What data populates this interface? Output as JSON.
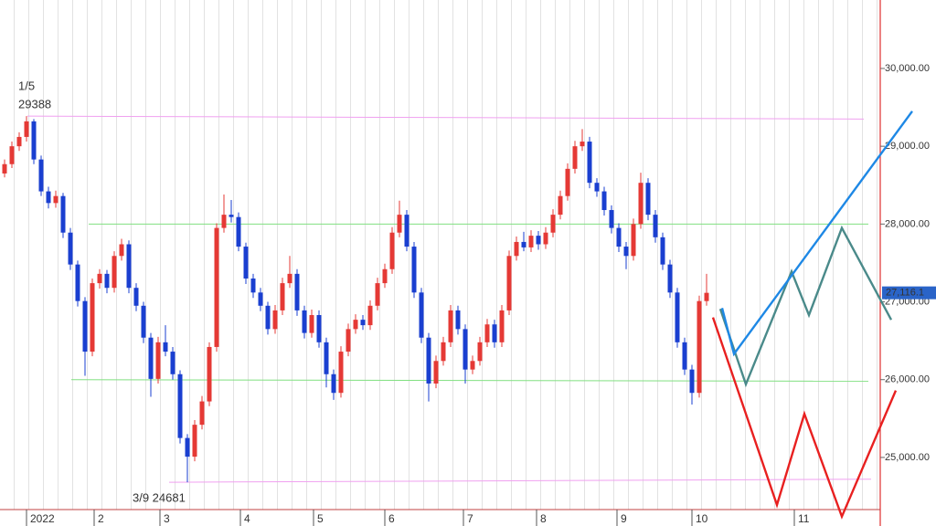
{
  "chart_data": {
    "type": "candlestick",
    "xlim": [
      -1.25,
      239.5
    ],
    "ylim": [
      24330,
      30880
    ],
    "yticks": [
      {
        "value": 25000,
        "label": "25,000.00"
      },
      {
        "value": 26000,
        "label": "26,000.00"
      },
      {
        "value": 27000,
        "label": "27,000.00"
      },
      {
        "value": 28000,
        "label": "28,000.00"
      },
      {
        "value": 29000,
        "label": "29,000.00"
      },
      {
        "value": 30000,
        "label": "30,000.00"
      }
    ],
    "xticks": [
      {
        "value": 6,
        "label": "2022"
      },
      {
        "value": 24.5,
        "label": "2"
      },
      {
        "value": 42.5,
        "label": "3"
      },
      {
        "value": 64.5,
        "label": "4"
      },
      {
        "value": 84.5,
        "label": "5"
      },
      {
        "value": 104,
        "label": "6"
      },
      {
        "value": 125.5,
        "label": "7"
      },
      {
        "value": 145.5,
        "label": "8"
      },
      {
        "value": 167.5,
        "label": "9"
      },
      {
        "value": 188,
        "label": "10"
      },
      {
        "value": 216,
        "label": "11"
      }
    ],
    "up_color": "#e53935",
    "down_color": "#1a3fd0",
    "x": [
      0,
      2,
      4,
      6,
      8,
      10,
      12,
      14,
      16,
      18,
      20,
      22,
      24,
      26,
      28,
      30,
      32,
      34,
      36,
      38,
      40,
      42,
      44,
      46,
      48,
      50,
      52,
      54,
      56,
      58,
      60,
      62,
      64,
      66,
      68,
      70,
      72,
      74,
      76,
      78,
      80,
      82,
      84,
      86,
      88,
      90,
      92,
      94,
      96,
      98,
      100,
      102,
      104,
      106,
      108,
      110,
      112,
      114,
      116,
      118,
      120,
      122,
      124,
      126,
      128,
      130,
      132,
      134,
      136,
      138,
      140,
      142,
      144,
      146,
      148,
      150,
      152,
      154,
      156,
      158,
      160,
      162,
      164,
      166,
      168,
      170,
      172,
      174,
      176,
      178,
      180,
      182,
      184,
      186,
      188,
      190,
      192
    ],
    "ohlc": [
      [
        28650,
        28830,
        28600,
        28770
      ],
      [
        28770,
        29060,
        28720,
        29000
      ],
      [
        29000,
        29180,
        28940,
        29120
      ],
      [
        29120,
        29388,
        29060,
        29320
      ],
      [
        29320,
        29350,
        28770,
        28830
      ],
      [
        28830,
        28880,
        28360,
        28420
      ],
      [
        28420,
        28480,
        28200,
        28270
      ],
      [
        28270,
        28430,
        28210,
        28360
      ],
      [
        28360,
        28400,
        27820,
        27890
      ],
      [
        27890,
        27950,
        27410,
        27480
      ],
      [
        27480,
        27530,
        26940,
        27010
      ],
      [
        27010,
        27060,
        26050,
        26360
      ],
      [
        26360,
        27300,
        26300,
        27240
      ],
      [
        27240,
        27420,
        27170,
        27360
      ],
      [
        27360,
        27410,
        27110,
        27180
      ],
      [
        27180,
        27650,
        27120,
        27590
      ],
      [
        27590,
        27810,
        27530,
        27740
      ],
      [
        27740,
        27790,
        27110,
        27180
      ],
      [
        27180,
        27240,
        26880,
        26950
      ],
      [
        26950,
        27000,
        26470,
        26540
      ],
      [
        26540,
        26600,
        25780,
        26010
      ],
      [
        26010,
        26550,
        25950,
        26480
      ],
      [
        26480,
        26700,
        26300,
        26360
      ],
      [
        26360,
        26420,
        26000,
        26070
      ],
      [
        26070,
        26120,
        25180,
        25250
      ],
      [
        25250,
        25300,
        24681,
        25010
      ],
      [
        25010,
        25480,
        24950,
        25420
      ],
      [
        25420,
        25790,
        25360,
        25720
      ],
      [
        25720,
        26480,
        25660,
        26420
      ],
      [
        26420,
        28010,
        26360,
        27950
      ],
      [
        27950,
        28380,
        27890,
        28120
      ],
      [
        28120,
        28310,
        28020,
        28090
      ],
      [
        28090,
        28150,
        27650,
        27710
      ],
      [
        27710,
        27760,
        27230,
        27300
      ],
      [
        27300,
        27360,
        27050,
        27120
      ],
      [
        27120,
        27180,
        26880,
        26950
      ],
      [
        26950,
        27000,
        26580,
        26650
      ],
      [
        26650,
        26960,
        26590,
        26890
      ],
      [
        26890,
        27310,
        26830,
        27240
      ],
      [
        27240,
        27590,
        27180,
        27360
      ],
      [
        27360,
        27420,
        26820,
        26890
      ],
      [
        26890,
        26950,
        26530,
        26600
      ],
      [
        26600,
        26900,
        26540,
        26830
      ],
      [
        26830,
        26890,
        26410,
        26480
      ],
      [
        26480,
        26540,
        25900,
        26070
      ],
      [
        26070,
        26130,
        25740,
        25830
      ],
      [
        25830,
        26430,
        25770,
        26360
      ],
      [
        26360,
        26720,
        26300,
        26650
      ],
      [
        26650,
        26840,
        26590,
        26770
      ],
      [
        26770,
        26830,
        26640,
        26700
      ],
      [
        26700,
        27020,
        26640,
        26950
      ],
      [
        26950,
        27310,
        26890,
        27240
      ],
      [
        27240,
        27490,
        27180,
        27420
      ],
      [
        27420,
        27960,
        27360,
        27890
      ],
      [
        27890,
        28300,
        27830,
        28120
      ],
      [
        28120,
        28180,
        27650,
        27710
      ],
      [
        27710,
        27770,
        27050,
        27120
      ],
      [
        27120,
        27180,
        26470,
        26540
      ],
      [
        26540,
        26600,
        25720,
        25950
      ],
      [
        25950,
        26310,
        25890,
        26240
      ],
      [
        26240,
        26550,
        26180,
        26480
      ],
      [
        26480,
        26960,
        26420,
        26890
      ],
      [
        26890,
        26950,
        26580,
        26650
      ],
      [
        26650,
        26710,
        25950,
        26130
      ],
      [
        26130,
        26310,
        26070,
        26240
      ],
      [
        26240,
        26550,
        26180,
        26480
      ],
      [
        26480,
        26780,
        26420,
        26710
      ],
      [
        26710,
        26770,
        26410,
        26480
      ],
      [
        26480,
        26960,
        26420,
        26890
      ],
      [
        26890,
        27660,
        26830,
        27590
      ],
      [
        27590,
        27840,
        27530,
        27770
      ],
      [
        27770,
        27900,
        27650,
        27700
      ],
      [
        27700,
        27920,
        27640,
        27850
      ],
      [
        27850,
        27910,
        27670,
        27740
      ],
      [
        27740,
        27960,
        27680,
        27890
      ],
      [
        27890,
        28190,
        27830,
        28120
      ],
      [
        28120,
        28430,
        28060,
        28360
      ],
      [
        28360,
        28780,
        28300,
        28710
      ],
      [
        28710,
        29070,
        28650,
        29000
      ],
      [
        29000,
        29220,
        28940,
        29060
      ],
      [
        29060,
        29120,
        28460,
        28530
      ],
      [
        28530,
        28590,
        28350,
        28420
      ],
      [
        28420,
        28480,
        28110,
        28180
      ],
      [
        28180,
        28240,
        27880,
        27950
      ],
      [
        27950,
        28010,
        27640,
        27710
      ],
      [
        27710,
        27770,
        27420,
        27590
      ],
      [
        27590,
        28070,
        27530,
        28000
      ],
      [
        28000,
        28660,
        27940,
        28530
      ],
      [
        28530,
        28590,
        28050,
        28120
      ],
      [
        28120,
        28180,
        27760,
        27830
      ],
      [
        27830,
        27890,
        27410,
        27480
      ],
      [
        27480,
        27540,
        27050,
        27120
      ],
      [
        27120,
        27180,
        26410,
        26480
      ],
      [
        26480,
        26540,
        26060,
        26130
      ],
      [
        26130,
        26190,
        25680,
        25830
      ],
      [
        25830,
        27080,
        25770,
        27010
      ],
      [
        27010,
        27360,
        26950,
        27116.1
      ]
    ],
    "last_price": 27116.1,
    "last_price_label": "27,116.1",
    "annotations": [
      {
        "text": "1/5"
      },
      {
        "text": "29388"
      },
      {
        "text": "3/9 24681"
      }
    ],
    "lines": [
      {
        "color": "#f0a0f0",
        "points": [
          [
            6.25,
            29388
          ],
          [
            235,
            29350
          ]
        ]
      },
      {
        "color": "#80e080",
        "points": [
          [
            23,
            28000
          ],
          [
            236.25,
            28000
          ]
        ]
      },
      {
        "color": "#80e080",
        "points": [
          [
            18.25,
            26000
          ],
          [
            236.25,
            25980
          ]
        ]
      },
      {
        "color": "#f0a0f0",
        "points": [
          [
            45,
            24681
          ],
          [
            237,
            24720
          ]
        ]
      },
      {
        "color": "#4a8a8a",
        "points": [
          [
            195.75,
            26910
          ],
          [
            202.75,
            25940
          ],
          [
            215.25,
            27390
          ],
          [
            220,
            26830
          ],
          [
            229,
            27950
          ],
          [
            242.5,
            26770
          ]
        ]
      },
      {
        "color": "#1e88e5",
        "points": [
          [
            196.25,
            26920
          ],
          [
            199.5,
            26330
          ],
          [
            248.25,
            29450
          ]
        ]
      },
      {
        "color": "#e82020",
        "points": [
          [
            193.75,
            26800
          ],
          [
            211.25,
            24390
          ],
          [
            218.75,
            25560
          ],
          [
            229,
            24240
          ],
          [
            243.75,
            25860
          ]
        ]
      }
    ]
  }
}
